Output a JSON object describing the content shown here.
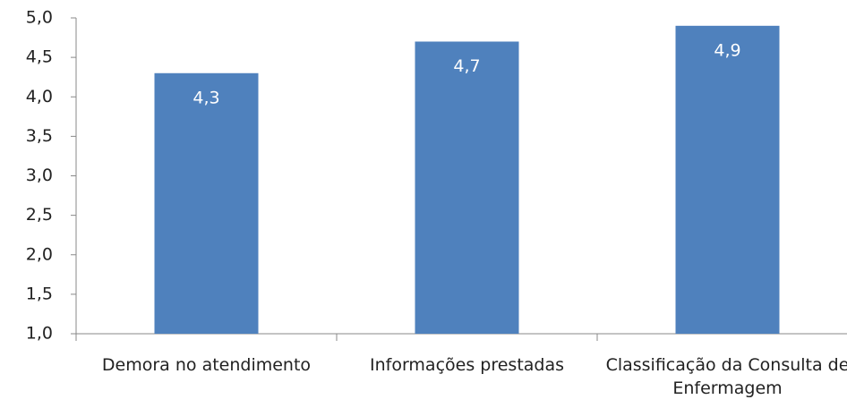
{
  "chart_data": {
    "type": "bar",
    "categories": [
      "Demora no atendimento",
      "Informações prestadas",
      "Classificação da Consulta de Enfermagem"
    ],
    "values": [
      4.3,
      4.7,
      4.9
    ],
    "value_labels": [
      "4,3",
      "4,7",
      "4,9"
    ],
    "color": "#4f81bd",
    "ylim": [
      1,
      5
    ],
    "yticks": [
      {
        "value": 1,
        "label": "1,0"
      },
      {
        "value": 1.5,
        "label": "1,5"
      },
      {
        "value": 2,
        "label": "2,0"
      },
      {
        "value": 2.5,
        "label": "2,5"
      },
      {
        "value": 3,
        "label": "3,0"
      },
      {
        "value": 3.5,
        "label": "3,5"
      },
      {
        "value": 4,
        "label": "4,0"
      },
      {
        "value": 4.5,
        "label": "4,5"
      },
      {
        "value": 5,
        "label": "5,0"
      }
    ],
    "grid": false
  }
}
